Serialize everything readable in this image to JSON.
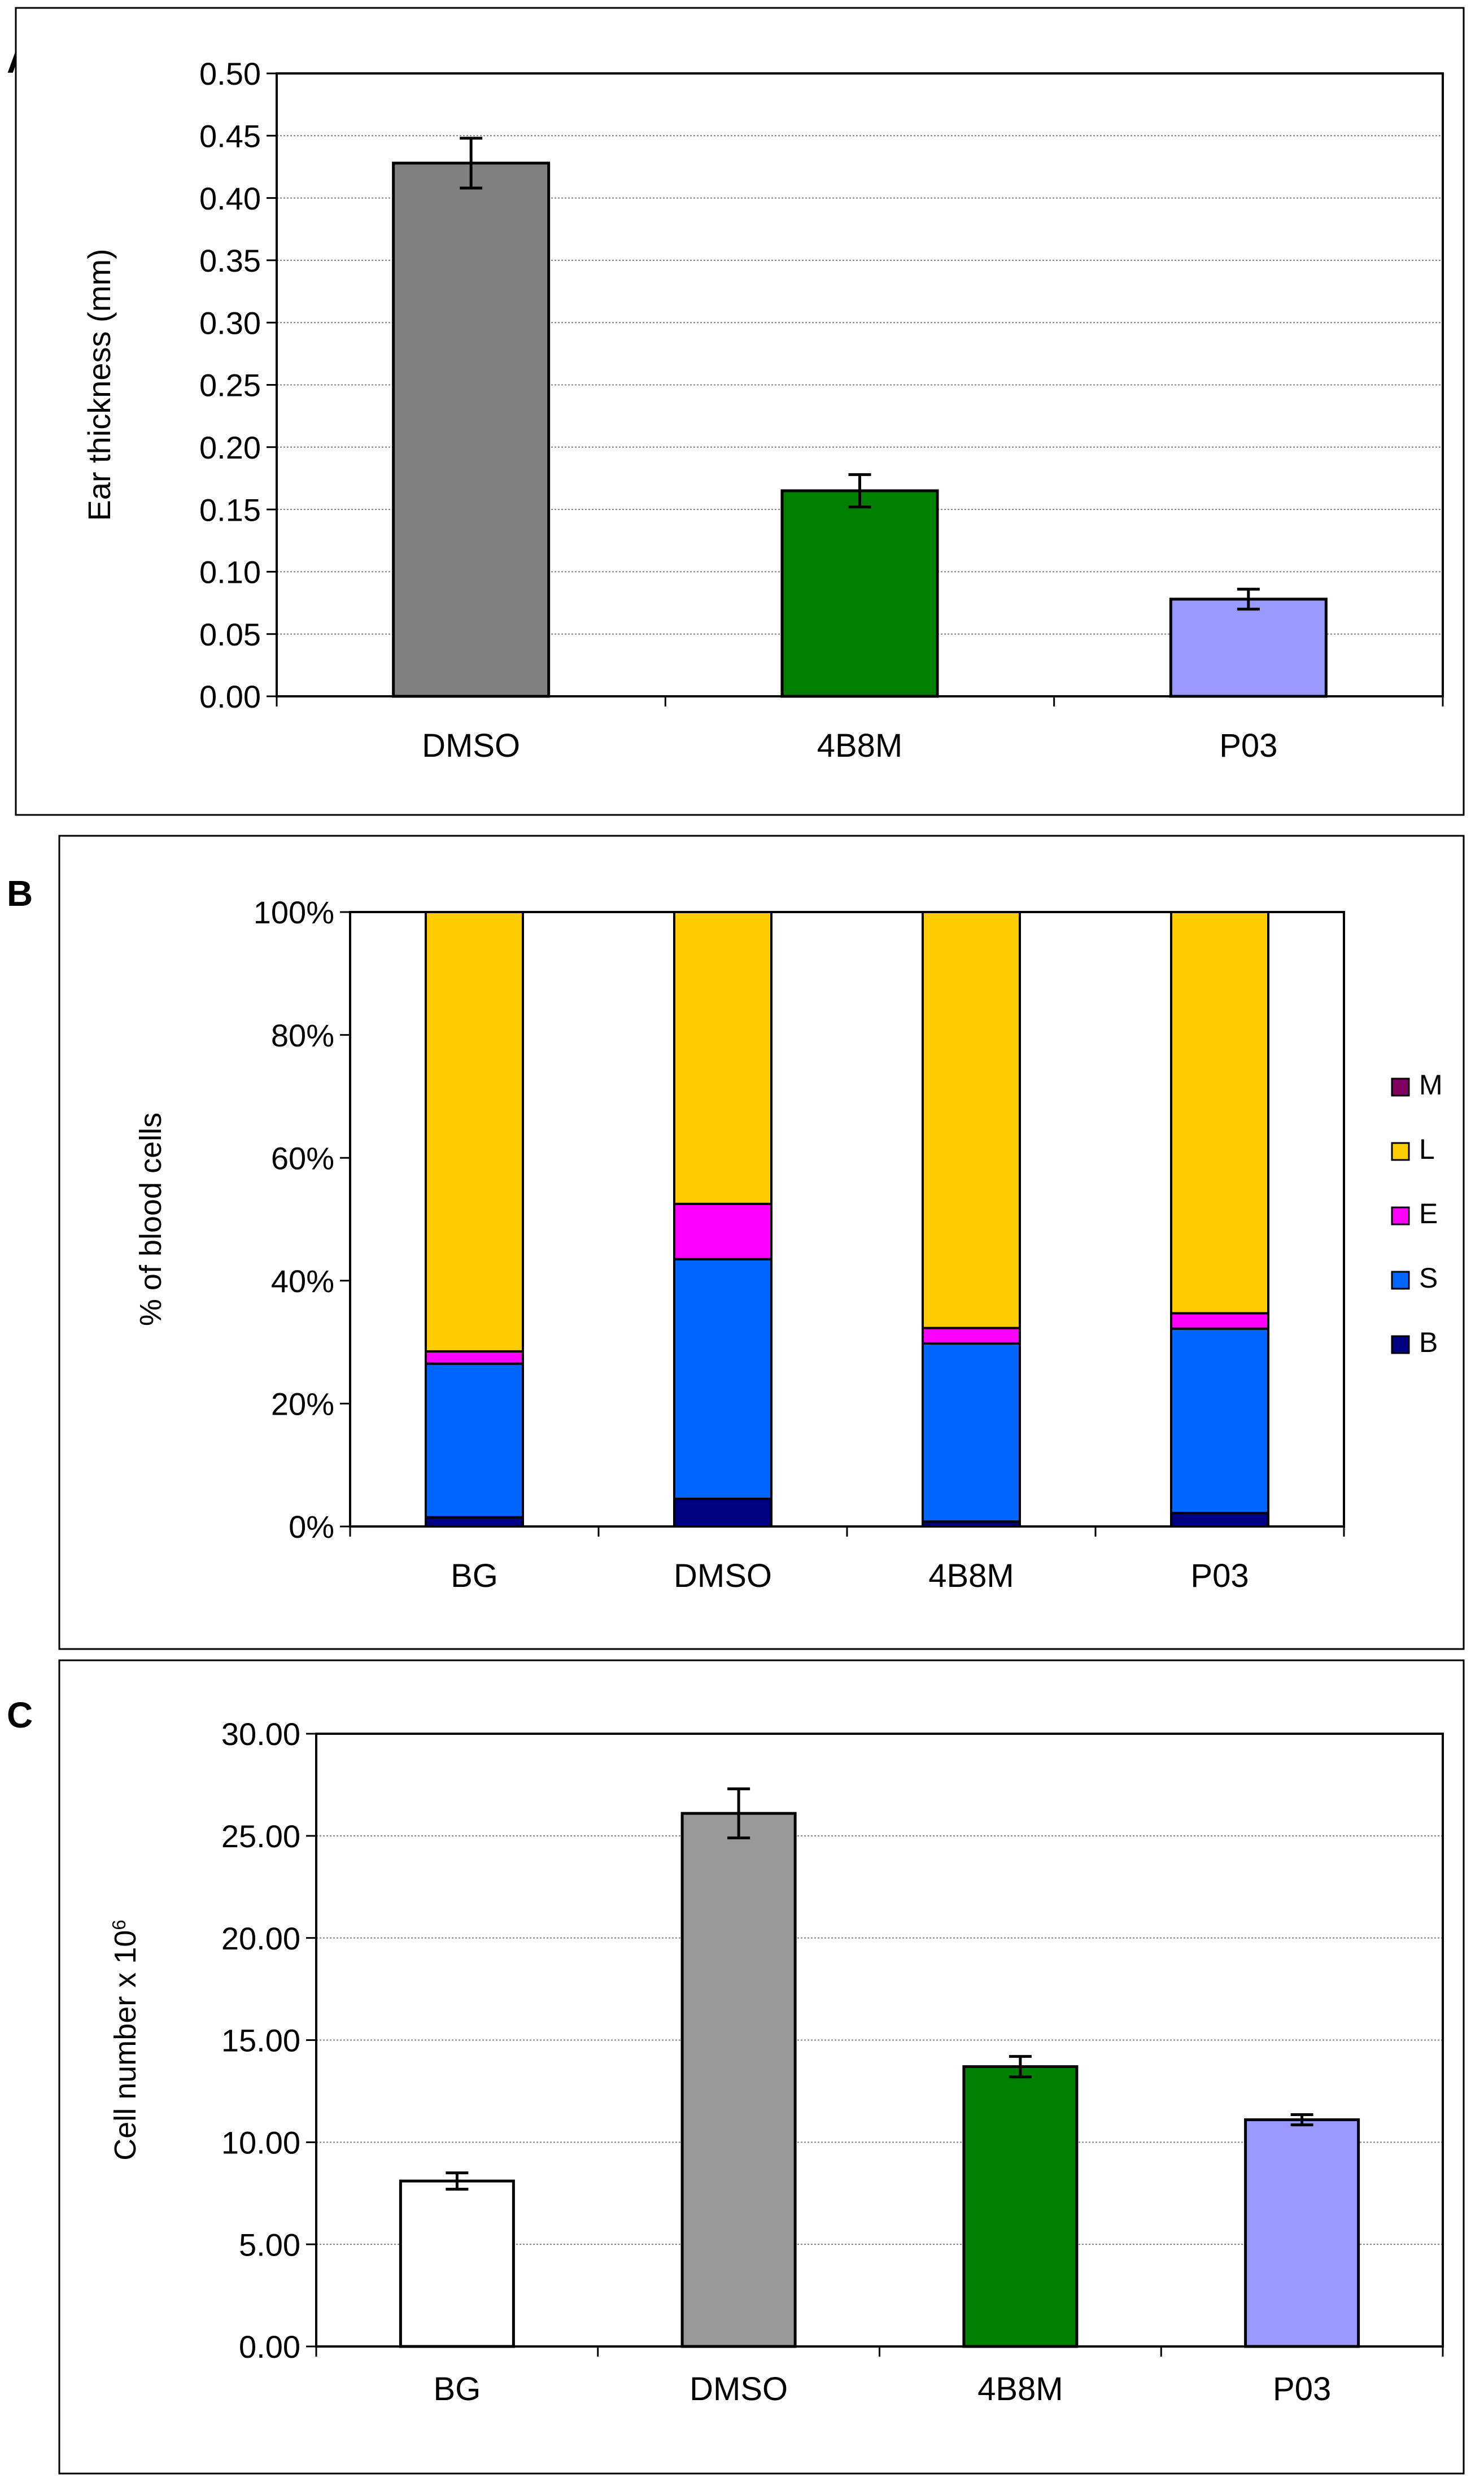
{
  "panels": {
    "a": {
      "letter": "A"
    },
    "b": {
      "letter": "B"
    },
    "c": {
      "letter": "C"
    }
  },
  "chart_data": [
    {
      "id": "A",
      "type": "bar",
      "categories": [
        "DMSO",
        "4B8M",
        "P03"
      ],
      "values": [
        0.428,
        0.165,
        0.078
      ],
      "errors": [
        0.02,
        0.013,
        0.008
      ],
      "colors": [
        "#808080",
        "#008000",
        "#9999ff"
      ],
      "ylabel": "Ear thickness (mm)",
      "ylim": [
        0,
        0.5
      ],
      "yticks": [
        "0.00",
        "0.05",
        "0.10",
        "0.15",
        "0.20",
        "0.25",
        "0.30",
        "0.35",
        "0.40",
        "0.45",
        "0.50"
      ],
      "grid": true
    },
    {
      "id": "B",
      "type": "bar",
      "stacked": true,
      "categories": [
        "BG",
        "DMSO",
        "4B8M",
        "P03"
      ],
      "series": [
        {
          "name": "B",
          "color": "#000080",
          "values": [
            1.5,
            4.5,
            0.8,
            2.2
          ]
        },
        {
          "name": "S",
          "color": "#0066ff",
          "values": [
            25.0,
            39.0,
            29.0,
            30.0
          ]
        },
        {
          "name": "E",
          "color": "#ff00ff",
          "values": [
            2.0,
            9.0,
            2.5,
            2.5
          ]
        },
        {
          "name": "L",
          "color": "#ffcc00",
          "values": [
            71.5,
            47.5,
            67.7,
            65.3
          ]
        },
        {
          "name": "M",
          "color": "#800060",
          "values": [
            0,
            0,
            0,
            0
          ]
        }
      ],
      "legend_order": [
        "M",
        "L",
        "E",
        "S",
        "B"
      ],
      "ylabel": "% of blood cells",
      "ylim": [
        0,
        100
      ],
      "yticks": [
        "0%",
        "20%",
        "40%",
        "60%",
        "80%",
        "100%"
      ],
      "legend": "right"
    },
    {
      "id": "C",
      "type": "bar",
      "categories": [
        "BG",
        "DMSO",
        "4B8M",
        "P03"
      ],
      "values": [
        8.1,
        26.1,
        13.7,
        11.1
      ],
      "errors": [
        0.4,
        1.2,
        0.5,
        0.25
      ],
      "colors": [
        "#ffffff",
        "#999999",
        "#008000",
        "#9999ff"
      ],
      "ylabel": "Cell number x 10",
      "ylabel_sup": "6",
      "ylim": [
        0,
        30
      ],
      "yticks": [
        "0.00",
        "5.00",
        "10.00",
        "15.00",
        "20.00",
        "25.00",
        "30.00"
      ],
      "grid": true
    }
  ]
}
